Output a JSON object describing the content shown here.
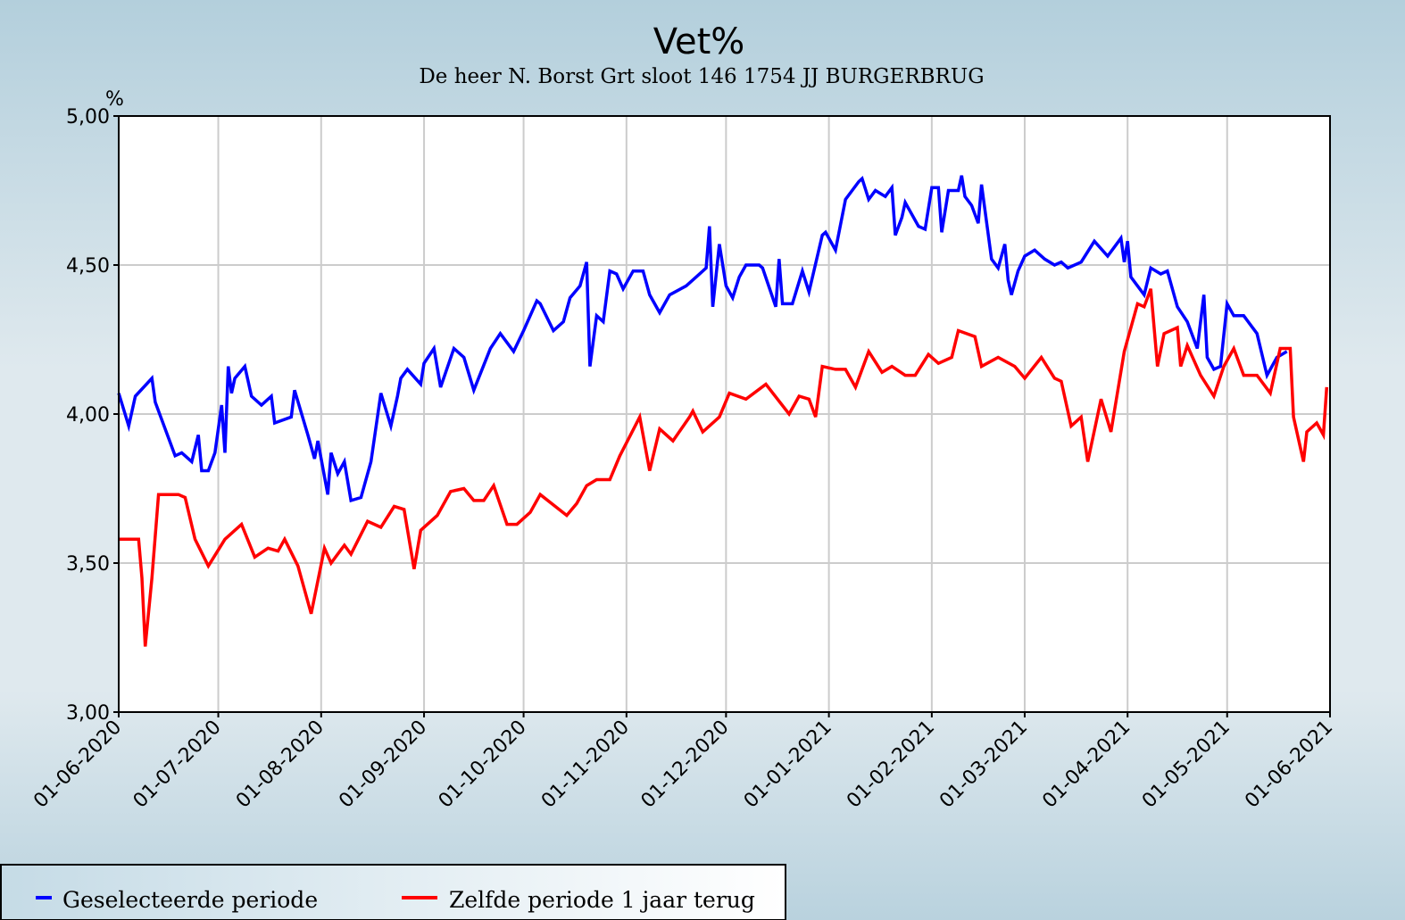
{
  "chart_data": {
    "type": "line",
    "title": "Vet%",
    "subtitle": "De heer N.  Borst Grt sloot 146 1754 JJ BURGERBRUG",
    "ylabel": "%",
    "ylim": [
      3.0,
      5.0
    ],
    "yticks": [
      "3,00",
      "3,50",
      "4,00",
      "4,50",
      "5,00"
    ],
    "ytick_values": [
      3.0,
      3.5,
      4.0,
      4.5,
      5.0
    ],
    "x_unit": "days since 01-06-2020",
    "xlim": [
      0,
      365
    ],
    "xticks": [
      "01-06-2020",
      "01-07-2020",
      "01-08-2020",
      "01-09-2020",
      "01-10-2020",
      "01-11-2020",
      "01-12-2020",
      "01-01-2021",
      "01-02-2021",
      "01-03-2021",
      "01-04-2021",
      "01-05-2021",
      "01-06-2021"
    ],
    "xtick_values": [
      0,
      30,
      61,
      92,
      122,
      153,
      183,
      214,
      245,
      273,
      304,
      334,
      365
    ],
    "grid": true,
    "legend_position": "bottom-left",
    "series": [
      {
        "name": "Geselecteerde periode",
        "color": "#0000ff",
        "x": [
          0,
          3,
          5,
          10,
          11,
          17,
          19,
          22,
          24,
          25,
          27,
          29,
          31,
          32,
          33,
          34,
          35,
          38,
          40,
          43,
          45,
          46,
          47,
          52,
          53,
          57,
          59,
          60,
          63,
          64,
          66,
          68,
          70,
          73,
          76,
          79,
          82,
          84,
          85,
          87,
          91,
          92,
          95,
          97,
          101,
          104,
          107,
          112,
          115,
          119,
          122,
          126,
          127,
          131,
          134,
          136,
          139,
          141,
          142,
          144,
          146,
          148,
          150,
          152,
          155,
          158,
          160,
          163,
          166,
          171,
          174,
          177,
          178,
          179,
          181,
          183,
          185,
          187,
          189,
          193,
          194,
          198,
          199,
          200,
          203,
          206,
          208,
          212,
          213,
          216,
          219,
          223,
          224,
          226,
          228,
          231,
          233,
          234,
          236,
          237,
          241,
          243,
          245,
          247,
          248,
          250,
          253,
          254,
          255,
          257,
          259,
          260,
          263,
          265,
          267,
          268,
          269,
          271,
          273,
          276,
          279,
          282,
          284,
          286,
          290,
          294,
          298,
          302,
          303,
          304,
          305,
          309,
          311,
          314,
          316,
          319,
          322,
          325,
          327,
          328,
          330,
          332,
          334,
          336,
          339,
          343,
          346,
          349,
          352
        ],
        "y": [
          4.07,
          3.96,
          4.06,
          4.12,
          4.04,
          3.86,
          3.87,
          3.84,
          3.93,
          3.81,
          3.81,
          3.87,
          4.03,
          3.87,
          4.16,
          4.07,
          4.12,
          4.16,
          4.06,
          4.03,
          4.05,
          4.06,
          3.97,
          3.99,
          4.08,
          3.93,
          3.85,
          3.91,
          3.73,
          3.87,
          3.8,
          3.84,
          3.71,
          3.72,
          3.84,
          4.07,
          3.96,
          4.06,
          4.12,
          4.15,
          4.1,
          4.17,
          4.22,
          4.09,
          4.22,
          4.19,
          4.08,
          4.22,
          4.27,
          4.21,
          4.28,
          4.38,
          4.37,
          4.28,
          4.31,
          4.39,
          4.43,
          4.51,
          4.16,
          4.33,
          4.31,
          4.48,
          4.47,
          4.42,
          4.48,
          4.48,
          4.4,
          4.34,
          4.4,
          4.43,
          4.46,
          4.49,
          4.63,
          4.36,
          4.57,
          4.43,
          4.39,
          4.46,
          4.5,
          4.5,
          4.49,
          4.36,
          4.52,
          4.37,
          4.37,
          4.48,
          4.41,
          4.6,
          4.61,
          4.55,
          4.72,
          4.78,
          4.79,
          4.72,
          4.75,
          4.73,
          4.76,
          4.6,
          4.66,
          4.71,
          4.63,
          4.62,
          4.76,
          4.76,
          4.61,
          4.75,
          4.75,
          4.8,
          4.73,
          4.7,
          4.64,
          4.77,
          4.52,
          4.49,
          4.57,
          4.45,
          4.4,
          4.48,
          4.53,
          4.55,
          4.52,
          4.5,
          4.51,
          4.49,
          4.51,
          4.58,
          4.53,
          4.59,
          4.51,
          4.58,
          4.46,
          4.4,
          4.49,
          4.47,
          4.48,
          4.36,
          4.31,
          4.22,
          4.4,
          4.19,
          4.15,
          4.16,
          4.37,
          4.33,
          4.33,
          4.27,
          4.13,
          4.19,
          4.21
        ]
      },
      {
        "name": "Zelfde periode 1 jaar terug",
        "color": "#ff0000",
        "x": [
          0,
          6,
          7,
          8,
          10,
          12,
          18,
          20,
          23,
          27,
          32,
          37,
          41,
          45,
          48,
          50,
          54,
          58,
          62,
          64,
          68,
          70,
          75,
          79,
          83,
          86,
          89,
          91,
          96,
          100,
          104,
          107,
          110,
          113,
          117,
          120,
          124,
          127,
          135,
          138,
          141,
          144,
          148,
          151,
          157,
          160,
          163,
          167,
          172,
          173,
          176,
          181,
          184,
          189,
          195,
          202,
          205,
          208,
          210,
          212,
          216,
          219,
          222,
          226,
          230,
          233,
          237,
          240,
          244,
          247,
          251,
          253,
          258,
          260,
          265,
          270,
          273,
          278,
          282,
          284,
          287,
          290,
          292,
          296,
          299,
          303,
          307,
          309,
          311,
          313,
          315,
          319,
          320,
          322,
          326,
          330,
          333,
          336,
          339,
          343,
          347,
          350,
          353,
          354,
          357,
          358,
          361,
          363,
          364
        ],
        "y": [
          3.58,
          3.58,
          3.45,
          3.22,
          3.45,
          3.73,
          3.73,
          3.72,
          3.58,
          3.49,
          3.58,
          3.63,
          3.52,
          3.55,
          3.54,
          3.58,
          3.49,
          3.33,
          3.55,
          3.5,
          3.56,
          3.53,
          3.64,
          3.62,
          3.69,
          3.68,
          3.48,
          3.61,
          3.66,
          3.74,
          3.75,
          3.71,
          3.71,
          3.76,
          3.63,
          3.63,
          3.67,
          3.73,
          3.66,
          3.7,
          3.76,
          3.78,
          3.78,
          3.86,
          3.99,
          3.81,
          3.95,
          3.91,
          3.99,
          4.01,
          3.94,
          3.99,
          4.07,
          4.05,
          4.1,
          4.0,
          4.06,
          4.05,
          3.99,
          4.16,
          4.15,
          4.15,
          4.09,
          4.21,
          4.14,
          4.16,
          4.13,
          4.13,
          4.2,
          4.17,
          4.19,
          4.28,
          4.26,
          4.16,
          4.19,
          4.16,
          4.12,
          4.19,
          4.12,
          4.11,
          3.96,
          3.99,
          3.84,
          4.05,
          3.94,
          4.21,
          4.37,
          4.36,
          4.42,
          4.16,
          4.27,
          4.29,
          4.16,
          4.23,
          4.13,
          4.06,
          4.16,
          4.22,
          4.13,
          4.13,
          4.07,
          4.22,
          4.22,
          3.99,
          3.84,
          3.94,
          3.97,
          3.93,
          4.09
        ]
      }
    ]
  }
}
